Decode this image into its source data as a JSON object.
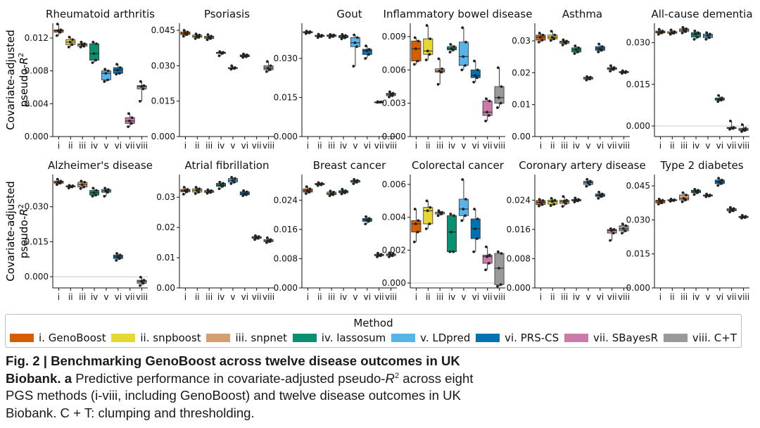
{
  "ylabel": [
    "Covariate-adjusted",
    "pseudo-"
  ],
  "ylabel_symbol": "R",
  "ylabel_exp": "2",
  "legend": {
    "title": "Method",
    "items": [
      {
        "label": "i. GenoBoost",
        "color": "#d55e00"
      },
      {
        "label": "ii. snpboost",
        "color": "#e6d732"
      },
      {
        "label": "iii. snpnet",
        "color": "#d4a070"
      },
      {
        "label": "iv. lassosum",
        "color": "#0a9070"
      },
      {
        "label": "v. LDpred",
        "color": "#56b4e9"
      },
      {
        "label": "vi. PRS-CS",
        "color": "#0072b2"
      },
      {
        "label": "vii. SBayesR",
        "color": "#cc79a7"
      },
      {
        "label": "viii. C+T",
        "color": "#999999"
      }
    ]
  },
  "caption": {
    "bold": "Fig. 2 | Benchmarking GenoBoost across twelve disease outcomes in UK Biobank.",
    "panel": "a",
    "text_before": "Predictive performance in covariate-adjusted pseudo-",
    "symbol": "R",
    "exp": "2",
    "text_after": "across eight PGS methods (i-viii, including GenoBoost) and twelve disease outcomes in UK Biobank.",
    "note": "C + T: clumping and thresholding."
  },
  "chart_data": [
    {
      "type": "box",
      "title": "Rheumatoid arthritis",
      "ylim": [
        0,
        0.0138
      ],
      "yticks": [
        0,
        0.004,
        0.008,
        0.012
      ],
      "ytick_labels": [
        "0.000",
        "0.004",
        "0.008",
        "0.012"
      ],
      "categories": [
        "i",
        "ii",
        "iii",
        "iv",
        "v",
        "vi",
        "vii",
        "viii"
      ],
      "series": [
        [
          0.0123,
          0.0127,
          0.0129,
          0.013,
          0.0137
        ],
        [
          0.0109,
          0.0112,
          0.0115,
          0.0118,
          0.0121
        ],
        [
          0.0109,
          0.011,
          0.0112,
          0.0113,
          0.0115
        ],
        [
          0.009,
          0.0093,
          0.0101,
          0.0113,
          0.0115
        ],
        [
          0.0067,
          0.0069,
          0.0077,
          0.008,
          0.0082
        ],
        [
          0.0076,
          0.0077,
          0.0081,
          0.0084,
          0.0088
        ],
        [
          0.0012,
          0.0016,
          0.0019,
          0.0023,
          0.0028
        ],
        [
          0.0043,
          0.0058,
          0.0061,
          0.0062,
          0.0067
        ]
      ]
    },
    {
      "type": "box",
      "title": "Psoriasis",
      "ylim": [
        0,
        0.048
      ],
      "yticks": [
        0,
        0.015,
        0.03,
        0.045
      ],
      "ytick_labels": [
        "0.000",
        "0.015",
        "0.030",
        "0.045"
      ],
      "categories": [
        "i",
        "ii",
        "iii",
        "iv",
        "v",
        "vi",
        "vii",
        "viii"
      ],
      "series": [
        [
          0.0425,
          0.0432,
          0.0437,
          0.0443,
          0.045
        ],
        [
          0.0415,
          0.042,
          0.0425,
          0.043,
          0.0435
        ],
        [
          0.041,
          0.0415,
          0.042,
          0.0425,
          0.0432
        ],
        [
          0.0342,
          0.0352,
          0.0355,
          0.0357,
          0.036
        ],
        [
          0.0285,
          0.0288,
          0.029,
          0.0292,
          0.03
        ],
        [
          0.0335,
          0.0338,
          0.0342,
          0.0346,
          0.035
        ],
        [],
        [
          0.0275,
          0.0283,
          0.029,
          0.03,
          0.0318
        ]
      ]
    },
    {
      "type": "box",
      "title": "Gout",
      "ylim": [
        0,
        0.0435
      ],
      "yticks": [
        0,
        0.015,
        0.03
      ],
      "ytick_labels": [
        "0.000",
        "0.015",
        "0.030"
      ],
      "categories": [
        "i",
        "ii",
        "iii",
        "iv",
        "v",
        "vi",
        "vii",
        "viii"
      ],
      "series": [
        [
          0.0395,
          0.0398,
          0.04,
          0.0403,
          0.0405
        ],
        [
          0.038,
          0.0384,
          0.0386,
          0.0389,
          0.0393
        ],
        [
          0.038,
          0.0384,
          0.0387,
          0.039,
          0.0392
        ],
        [
          0.0375,
          0.0379,
          0.0384,
          0.0388,
          0.0392
        ],
        [
          0.027,
          0.0345,
          0.036,
          0.038,
          0.039
        ],
        [
          0.03,
          0.0315,
          0.033,
          0.0335,
          0.0348
        ],
        [
          0.0131,
          0.0132,
          0.0132,
          0.0133,
          0.0134
        ],
        [
          0.0152,
          0.0157,
          0.0162,
          0.0166,
          0.0172
        ]
      ]
    },
    {
      "type": "box",
      "title": "Inflammatory bowel disease",
      "ylim": [
        0,
        0.0102
      ],
      "yticks": [
        0,
        0.003,
        0.006,
        0.009
      ],
      "ytick_labels": [
        "0.000",
        "0.003",
        "0.006",
        "0.009"
      ],
      "categories": [
        "i",
        "ii",
        "iii",
        "iv",
        "v",
        "vi",
        "vii",
        "viii"
      ],
      "series": [
        [
          0.0065,
          0.0068,
          0.0079,
          0.0086,
          0.0089
        ],
        [
          0.0069,
          0.0074,
          0.0077,
          0.0088,
          0.01
        ],
        [
          0.0047,
          0.0058,
          0.0059,
          0.0061,
          0.007
        ],
        [
          0.0076,
          0.0078,
          0.0079,
          0.0081,
          0.0083
        ],
        [
          0.006,
          0.0064,
          0.0072,
          0.0085,
          0.0098
        ],
        [
          0.0049,
          0.0053,
          0.0055,
          0.006,
          0.0068
        ],
        [
          0.0014,
          0.0019,
          0.0022,
          0.0032,
          0.0034
        ],
        [
          0.0026,
          0.003,
          0.0035,
          0.0045,
          0.0062
        ]
      ]
    },
    {
      "type": "box",
      "title": "Asthma",
      "ylim": [
        0,
        0.0355
      ],
      "yticks": [
        0,
        0.01,
        0.02,
        0.03
      ],
      "ytick_labels": [
        "0.00",
        "0.01",
        "0.02",
        "0.03"
      ],
      "categories": [
        "i",
        "ii",
        "iii",
        "iv",
        "v",
        "vi",
        "vii",
        "viii"
      ],
      "series": [
        [
          0.0296,
          0.0302,
          0.0311,
          0.0318,
          0.0324
        ],
        [
          0.0301,
          0.0306,
          0.0311,
          0.0318,
          0.033
        ],
        [
          0.0287,
          0.0292,
          0.0296,
          0.0299,
          0.0303
        ],
        [
          0.026,
          0.0265,
          0.0272,
          0.0278,
          0.0284
        ],
        [
          0.0177,
          0.018,
          0.0183,
          0.0186,
          0.0188
        ],
        [
          0.0265,
          0.027,
          0.0275,
          0.0282,
          0.029
        ],
        [
          0.0205,
          0.021,
          0.0213,
          0.0216,
          0.0222
        ],
        [
          0.0198,
          0.02,
          0.0202,
          0.0204,
          0.0206
        ]
      ]
    },
    {
      "type": "box",
      "title": "All-cause dementia",
      "ylim": [
        -0.0038,
        0.037
      ],
      "yticks": [
        0,
        0.015,
        0.03
      ],
      "ytick_labels": [
        "0.000",
        "0.015",
        "0.030"
      ],
      "categories": [
        "i",
        "ii",
        "iii",
        "iv",
        "v",
        "vi",
        "vii",
        "viii"
      ],
      "series": [
        [
          0.033,
          0.0335,
          0.0338,
          0.0342,
          0.0348
        ],
        [
          0.033,
          0.0334,
          0.0336,
          0.034,
          0.0346
        ],
        [
          0.0335,
          0.034,
          0.0345,
          0.035,
          0.0355
        ],
        [
          0.0312,
          0.032,
          0.033,
          0.0336,
          0.0342
        ],
        [
          0.0312,
          0.0318,
          0.0325,
          0.0331,
          0.0336
        ],
        [
          0.0088,
          0.0093,
          0.0096,
          0.0101,
          0.011
        ],
        [
          -0.0012,
          -0.0009,
          -0.0007,
          -0.0005,
          0.0018
        ],
        [
          -0.002,
          -0.0016,
          -0.0013,
          -0.0008,
          0.0005
        ]
      ]
    },
    {
      "type": "box",
      "title": "Alzheimer's disease",
      "ylim": [
        -0.0048,
        0.0438
      ],
      "yticks": [
        0,
        0.015,
        0.03
      ],
      "ytick_labels": [
        "0.000",
        "0.015",
        "0.030"
      ],
      "categories": [
        "i",
        "ii",
        "iii",
        "iv",
        "v",
        "vi",
        "vii",
        "viii"
      ],
      "series": [
        [
          0.0395,
          0.0401,
          0.0405,
          0.041,
          0.0418
        ],
        [
          0.038,
          0.0385,
          0.0387,
          0.039,
          0.0392
        ],
        [
          0.0378,
          0.0385,
          0.0395,
          0.0405,
          0.041
        ],
        [
          0.0345,
          0.035,
          0.036,
          0.037,
          0.038
        ],
        [
          0.0345,
          0.0362,
          0.0368,
          0.0374,
          0.038
        ],
        [
          0.007,
          0.0078,
          0.0085,
          0.0093,
          0.01
        ],
        [],
        [
          -0.0038,
          -0.0028,
          -0.002,
          -0.0015,
          -0.0002
        ]
      ]
    },
    {
      "type": "box",
      "title": "Atrial fibrillation",
      "ylim": [
        0,
        0.0375
      ],
      "yticks": [
        0,
        0.01,
        0.02,
        0.03
      ],
      "ytick_labels": [
        "0.00",
        "0.01",
        "0.02",
        "0.03"
      ],
      "categories": [
        "i",
        "ii",
        "iii",
        "iv",
        "v",
        "vi",
        "vii",
        "viii"
      ],
      "series": [
        [
          0.031,
          0.0318,
          0.0322,
          0.0326,
          0.0333
        ],
        [
          0.0312,
          0.0317,
          0.0323,
          0.0328,
          0.0333
        ],
        [
          0.0313,
          0.0316,
          0.0319,
          0.0322,
          0.0325
        ],
        [
          0.0328,
          0.0336,
          0.034,
          0.0346,
          0.035
        ],
        [
          0.0345,
          0.035,
          0.0356,
          0.0362,
          0.0366
        ],
        [
          0.0305,
          0.0308,
          0.0312,
          0.0318,
          0.0322
        ],
        [
          0.016,
          0.0164,
          0.0167,
          0.017,
          0.0173
        ],
        [
          0.015,
          0.0153,
          0.0156,
          0.016,
          0.0166
        ]
      ]
    },
    {
      "type": "box",
      "title": "Breast cancer",
      "ylim": [
        0,
        0.031
      ],
      "yticks": [
        0,
        0.008,
        0.016,
        0.024
      ],
      "ytick_labels": [
        "0.000",
        "0.008",
        "0.016",
        "0.024"
      ],
      "categories": [
        "i",
        "ii",
        "iii",
        "iv",
        "v",
        "vi",
        "vii",
        "viii"
      ],
      "series": [
        [
          0.0258,
          0.0262,
          0.0266,
          0.0271,
          0.0277
        ],
        [
          0.028,
          0.0282,
          0.0284,
          0.0286,
          0.0288
        ],
        [
          0.0252,
          0.0255,
          0.0258,
          0.0262,
          0.0265
        ],
        [
          0.0257,
          0.026,
          0.0263,
          0.0266,
          0.027
        ],
        [
          0.0285,
          0.0289,
          0.0292,
          0.0294,
          0.0297
        ],
        [
          0.0175,
          0.0182,
          0.0186,
          0.019,
          0.0195
        ],
        [
          0.0085,
          0.0088,
          0.009,
          0.0092,
          0.0095
        ],
        [
          0.0085,
          0.0088,
          0.0091,
          0.0093,
          0.0096
        ]
      ]
    },
    {
      "type": "box",
      "title": "Colorectal cancer",
      "ylim": [
        -0.0003,
        0.0066
      ],
      "yticks": [
        0,
        0.002,
        0.004,
        0.006
      ],
      "ytick_labels": [
        "0.000",
        "0.002",
        "0.004",
        "0.006"
      ],
      "categories": [
        "i",
        "ii",
        "iii",
        "iv",
        "v",
        "vi",
        "vii",
        "viii"
      ],
      "series": [
        [
          0.0025,
          0.0031,
          0.0036,
          0.0038,
          0.0045
        ],
        [
          0.0033,
          0.0036,
          0.0044,
          0.0046,
          0.005
        ],
        [
          0.0041,
          0.0042,
          0.0043,
          0.0043,
          0.0044
        ],
        [
          0.0019,
          0.0019,
          0.0031,
          0.0041,
          0.0042
        ],
        [
          0.0038,
          0.0041,
          0.0045,
          0.0051,
          0.0063
        ],
        [
          0.0019,
          0.0027,
          0.0033,
          0.0039,
          0.0045
        ],
        [
          0.0008,
          0.0012,
          0.0016,
          0.0017,
          0.0022
        ],
        [
          -0.0002,
          -0.0001,
          0.0009,
          0.0018,
          0.0019
        ]
      ]
    },
    {
      "type": "box",
      "title": "Coronary artery disease",
      "ylim": [
        0,
        0.031
      ],
      "yticks": [
        0,
        0.008,
        0.016,
        0.024
      ],
      "ytick_labels": [
        "0.000",
        "0.008",
        "0.016",
        "0.024"
      ],
      "categories": [
        "i",
        "ii",
        "iii",
        "iv",
        "v",
        "vi",
        "vii",
        "viii"
      ],
      "series": [
        [
          0.0224,
          0.0228,
          0.0234,
          0.0239,
          0.0242
        ],
        [
          0.0225,
          0.0229,
          0.0236,
          0.024,
          0.0245
        ],
        [
          0.0223,
          0.0231,
          0.0236,
          0.024,
          0.025
        ],
        [
          0.0235,
          0.0238,
          0.024,
          0.0242,
          0.0246
        ],
        [
          0.0278,
          0.0283,
          0.0288,
          0.0292,
          0.0297
        ],
        [
          0.0245,
          0.025,
          0.0253,
          0.0257,
          0.0262
        ],
        [
          0.013,
          0.015,
          0.0157,
          0.016,
          0.0162
        ],
        [
          0.015,
          0.0156,
          0.0162,
          0.017,
          0.0175
        ]
      ]
    },
    {
      "type": "box",
      "title": "Type 2 diabetes",
      "ylim": [
        0,
        0.05
      ],
      "yticks": [
        0,
        0.015,
        0.03,
        0.045
      ],
      "ytick_labels": [
        "0.000",
        "0.015",
        "0.030",
        "0.045"
      ],
      "categories": [
        "i",
        "ii",
        "iii",
        "iv",
        "v",
        "vi",
        "vii",
        "viii"
      ],
      "series": [
        [
          0.037,
          0.0375,
          0.0382,
          0.0387,
          0.0392
        ],
        [
          0.0382,
          0.0385,
          0.0387,
          0.0389,
          0.0392
        ],
        [
          0.038,
          0.0388,
          0.0395,
          0.041,
          0.042
        ],
        [
          0.0412,
          0.042,
          0.0425,
          0.0431,
          0.0435
        ],
        [
          0.0402,
          0.0405,
          0.0408,
          0.041,
          0.0414
        ],
        [
          0.0452,
          0.046,
          0.0468,
          0.0476,
          0.0484
        ],
        [
          0.0335,
          0.034,
          0.0345,
          0.035,
          0.0355
        ],
        [
          0.0308,
          0.031,
          0.0313,
          0.0316,
          0.032
        ]
      ]
    }
  ]
}
